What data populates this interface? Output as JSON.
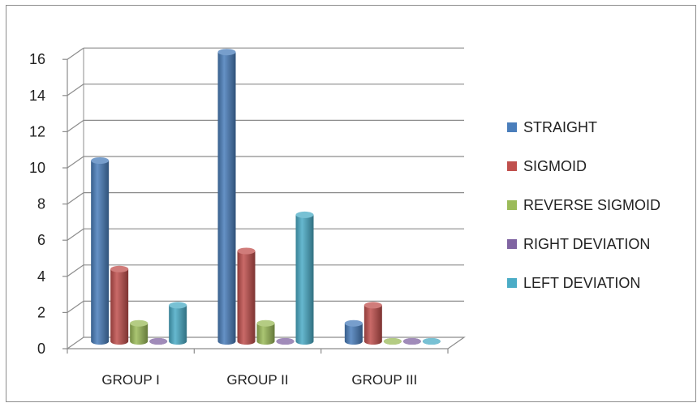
{
  "chart_data": {
    "type": "bar",
    "style": "3d-cylinder",
    "categories": [
      "GROUP I",
      "GROUP II",
      "GROUP III"
    ],
    "series": [
      {
        "name": "STRAIGHT",
        "values": [
          10,
          16,
          1
        ],
        "color": "#4a7ebb"
      },
      {
        "name": "SIGMOID",
        "values": [
          4,
          5,
          2
        ],
        "color": "#c0504d"
      },
      {
        "name": "REVERSE SIGMOID",
        "values": [
          1,
          1,
          0
        ],
        "color": "#9bbb59"
      },
      {
        "name": "RIGHT DEVIATION",
        "values": [
          0,
          0,
          0
        ],
        "color": "#8064a2"
      },
      {
        "name": "LEFT DEVIATION",
        "values": [
          2,
          7,
          0
        ],
        "color": "#4bacc6"
      }
    ],
    "y_ticks": [
      "0",
      "2",
      "4",
      "6",
      "8",
      "10",
      "12",
      "14",
      "16"
    ],
    "ylim": [
      0,
      16
    ],
    "grid": true,
    "legend_position": "right"
  }
}
